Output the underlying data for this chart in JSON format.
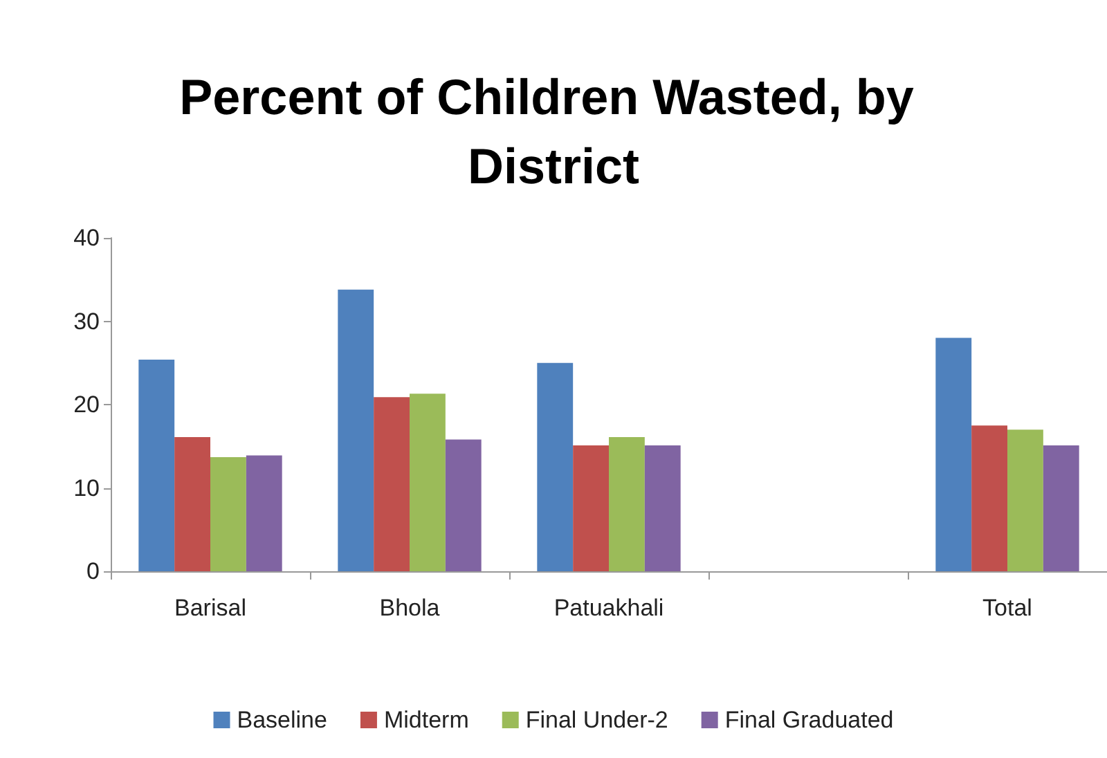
{
  "chart_data": {
    "type": "bar",
    "title": "Percent of Children Wasted, by District",
    "categories": [
      "Barisal",
      "Bhola",
      "Patuakhali",
      null,
      "Total"
    ],
    "series": [
      {
        "name": "Baseline",
        "color": "#4f81bd",
        "values": [
          25.4,
          33.8,
          25.0,
          null,
          28.0
        ]
      },
      {
        "name": "Midterm",
        "color": "#c0504d",
        "values": [
          16.1,
          20.9,
          15.1,
          null,
          17.5
        ]
      },
      {
        "name": "Final Under-2",
        "color": "#9bbb59",
        "values": [
          13.7,
          21.3,
          16.1,
          null,
          17.0
        ]
      },
      {
        "name": "Final Graduated",
        "color": "#8064a2",
        "values": [
          13.9,
          15.8,
          15.1,
          null,
          15.1
        ]
      }
    ],
    "ylim": [
      0,
      40
    ],
    "yticks": [
      0,
      10,
      20,
      30,
      40
    ],
    "grid": false,
    "legend": "bottom"
  }
}
